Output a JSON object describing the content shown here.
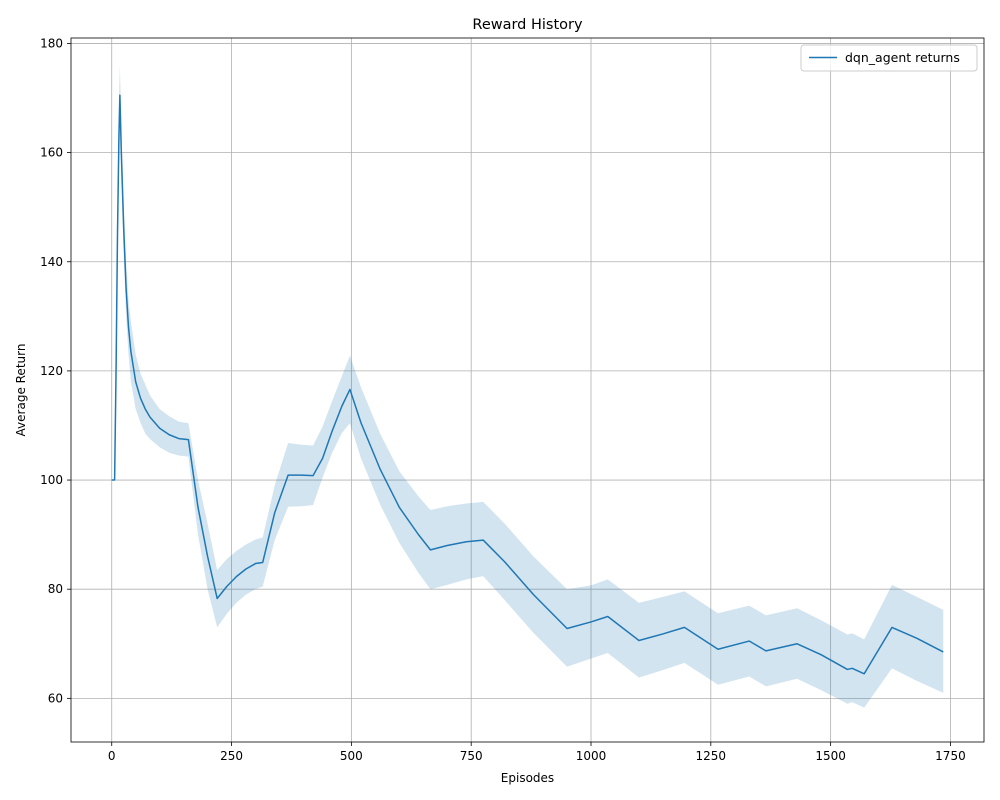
{
  "chart_data": {
    "type": "line",
    "title": "Reward History",
    "xlabel": "Episodes",
    "ylabel": "Average Return",
    "xlim": [
      -85,
      1820
    ],
    "ylim": [
      52,
      181
    ],
    "xticks": [
      0,
      250,
      500,
      750,
      1000,
      1250,
      1500,
      1750
    ],
    "yticks": [
      60,
      80,
      100,
      120,
      140,
      160,
      180
    ],
    "grid": true,
    "legend_position": "top-right",
    "colors": {
      "line": "#1f77b4",
      "band": "#1f77b4"
    },
    "series": [
      {
        "name": "dqn_agent returns",
        "x": [
          0,
          6,
          9,
          12,
          15,
          17,
          20,
          25,
          30,
          35,
          40,
          50,
          60,
          70,
          80,
          100,
          120,
          140,
          160,
          180,
          200,
          220,
          240,
          260,
          280,
          300,
          315,
          340,
          368,
          395,
          420,
          440,
          460,
          480,
          497,
          520,
          560,
          600,
          640,
          665,
          700,
          740,
          775,
          820,
          880,
          950,
          1000,
          1035,
          1100,
          1150,
          1195,
          1265,
          1330,
          1365,
          1430,
          1480,
          1535,
          1545,
          1570,
          1628,
          1680,
          1735
        ],
        "y": [
          100,
          100,
          120,
          145,
          163,
          170.5,
          160,
          146,
          135,
          128,
          123.5,
          118,
          115,
          113,
          111.5,
          109.5,
          108.3,
          107.6,
          107.4,
          95,
          86,
          78.3,
          80.5,
          82.3,
          83.7,
          84.7,
          84.9,
          94,
          100.9,
          100.9,
          100.8,
          104,
          109,
          113.5,
          116.6,
          110.5,
          102,
          95,
          90,
          87.2,
          88,
          88.7,
          89,
          85,
          79,
          72.8,
          74,
          75,
          70.6,
          71.8,
          73,
          69,
          70.5,
          68.7,
          70,
          68,
          65.3,
          65.5,
          64.5,
          73,
          71,
          68.5
        ],
        "lower": [
          100,
          100,
          117,
          140,
          156,
          165,
          155,
          141,
          130,
          123,
          118,
          113,
          110.5,
          108.5,
          107.5,
          106,
          105,
          104.5,
          104.3,
          90,
          80,
          73,
          75.5,
          77.5,
          79,
          80,
          80.5,
          89,
          95.1,
          95.2,
          95.4,
          100.5,
          105,
          108.6,
          110.4,
          104,
          95.5,
          88.5,
          83,
          80,
          80.8,
          81.8,
          82.4,
          78,
          72,
          65.8,
          67.3,
          68.3,
          63.8,
          65.2,
          66.5,
          62.5,
          64,
          62.2,
          63.6,
          61.5,
          59,
          59.3,
          58.3,
          65.5,
          63.2,
          61
        ],
        "upper": [
          100,
          100,
          123,
          150,
          170,
          176,
          165,
          151,
          140,
          133,
          129,
          123,
          119.5,
          117.5,
          115.5,
          113,
          111.7,
          110.7,
          110.4,
          100,
          92,
          83.5,
          85.5,
          87,
          88.2,
          89.1,
          89.5,
          99,
          106.8,
          106.5,
          106.3,
          109.8,
          114.5,
          119,
          122.8,
          117,
          108.5,
          101.6,
          97,
          94.5,
          95.2,
          95.7,
          96,
          92,
          86,
          80,
          80.7,
          81.8,
          77.5,
          78.6,
          79.6,
          75.6,
          77,
          75.2,
          76.5,
          74.3,
          71.7,
          71.9,
          70.8,
          80.8,
          78.6,
          76.2
        ]
      }
    ]
  }
}
